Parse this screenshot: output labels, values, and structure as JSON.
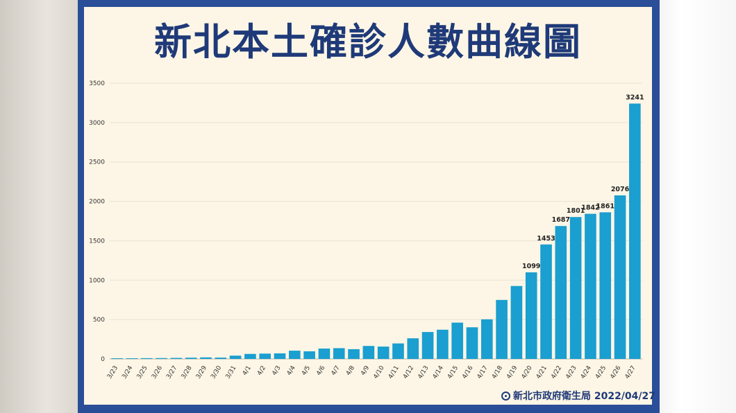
{
  "colors": {
    "frame": "#2a4e98",
    "panel": "#fdf6e6",
    "title": "#1f3a78",
    "bar": "#1a9fd0",
    "grid": "#e7e1d2",
    "axis_text": "#333333"
  },
  "footer": {
    "icon": "seal-icon",
    "text": "新北市政府衛生局 2022/04/27"
  },
  "chart_data": {
    "type": "bar",
    "title": "新北本土確診人數曲線圖",
    "xlabel": "",
    "ylabel": "",
    "ylim": [
      0,
      3500
    ],
    "yticks": [
      0,
      500,
      1000,
      1500,
      2000,
      2500,
      3000,
      3500
    ],
    "grid": true,
    "categories": [
      "3/23",
      "3/24",
      "3/25",
      "3/26",
      "3/27",
      "3/28",
      "3/29",
      "3/30",
      "3/31",
      "4/1",
      "4/2",
      "4/3",
      "4/4",
      "4/5",
      "4/6",
      "4/7",
      "4/8",
      "4/9",
      "4/10",
      "4/11",
      "4/12",
      "4/13",
      "4/14",
      "4/15",
      "4/16",
      "4/17",
      "4/18",
      "4/19",
      "4/20",
      "4/21",
      "4/22",
      "4/23",
      "4/24",
      "4/25",
      "4/26",
      "4/27"
    ],
    "values": [
      3,
      5,
      10,
      11,
      13,
      16,
      20,
      17,
      42,
      64,
      68,
      71,
      105,
      97,
      132,
      137,
      124,
      165,
      157,
      197,
      262,
      342,
      371,
      461,
      402,
      503,
      749,
      926,
      1099,
      1453,
      1687,
      1801,
      1842,
      1861,
      2076,
      3241
    ],
    "data_labels": {
      "4/20": "1099",
      "4/21": "1453",
      "4/22": "1687",
      "4/23": "1801",
      "4/24": "1842",
      "4/25": "1861",
      "4/26": "2076",
      "4/27": "3241"
    }
  }
}
